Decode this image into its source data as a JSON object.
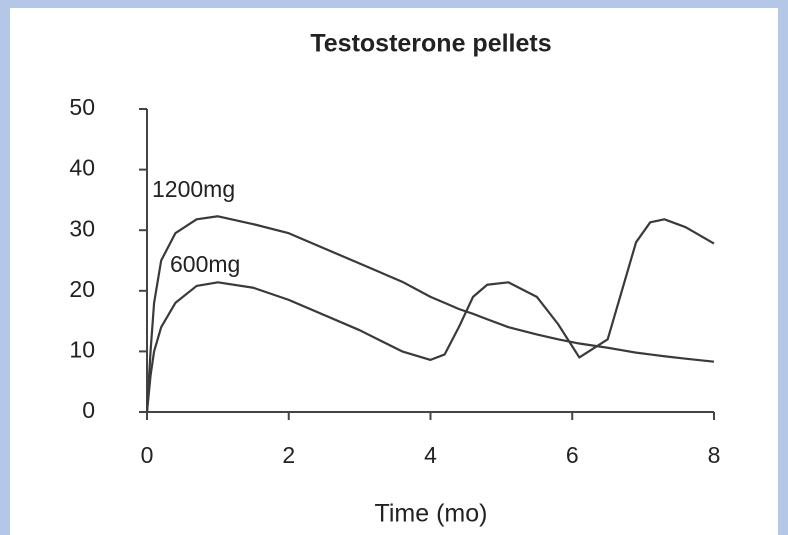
{
  "chart_data": {
    "type": "line",
    "title": "Testosterone pellets",
    "x_label": "Time (mo)",
    "x": [
      0,
      0.05,
      0.1,
      0.2,
      0.4,
      0.7,
      1,
      1.5,
      2,
      3,
      3.6,
      4,
      4.2,
      4.4,
      4.6,
      4.8,
      5.1,
      5.5,
      5.8,
      6.1,
      6.5,
      6.7,
      6.9,
      7.1,
      7.3,
      7.6,
      8
    ],
    "series": [
      {
        "name": "1200mg",
        "color": "#3a3a3a",
        "values": [
          0,
          10,
          18,
          25,
          29.5,
          31.8,
          32.3,
          31,
          29.5,
          24.5,
          21.5,
          19,
          18,
          17,
          16.2,
          15.3,
          14,
          12.8,
          12,
          11.3,
          10.6,
          10.2,
          9.8,
          9.5,
          9.2,
          8.8,
          8.3
        ]
      },
      {
        "name": "600mg",
        "color": "#3a3a3a",
        "values": [
          0,
          6,
          10,
          14,
          18,
          20.8,
          21.4,
          20.5,
          18.5,
          13.5,
          10,
          8.6,
          9.5,
          14,
          19,
          21,
          21.4,
          19,
          14.5,
          9,
          12,
          20,
          28,
          31.3,
          31.8,
          30.5,
          27.8
        ]
      }
    ],
    "xlim": [
      0,
      8
    ],
    "xticks": [
      0,
      2,
      4,
      6,
      8
    ],
    "ylim": [
      0,
      50
    ],
    "yticks": [
      0,
      10,
      20,
      30,
      40,
      50
    ]
  }
}
